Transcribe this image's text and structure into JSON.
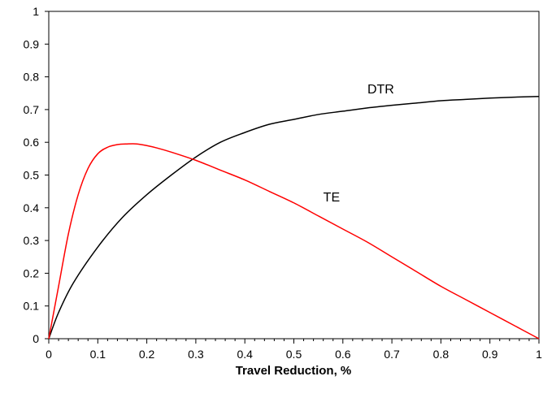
{
  "chart_data": {
    "type": "line",
    "title": "",
    "xlabel": "Travel Reduction, %",
    "ylabel": "",
    "xlim": [
      0,
      1
    ],
    "ylim": [
      0,
      1
    ],
    "x_ticks": [
      "0",
      "0.1",
      "0.2",
      "0.3",
      "0.4",
      "0.5",
      "0.6",
      "0.7",
      "0.8",
      "0.9",
      "1"
    ],
    "y_ticks": [
      "0",
      "0.1",
      "0.2",
      "0.3",
      "0.4",
      "0.5",
      "0.6",
      "0.7",
      "0.8",
      "0.9",
      "1"
    ],
    "grid": false,
    "legend": "none",
    "series": [
      {
        "name": "DTR",
        "color": "#000000",
        "x": [
          0,
          0.02,
          0.05,
          0.1,
          0.15,
          0.2,
          0.25,
          0.3,
          0.35,
          0.4,
          0.45,
          0.5,
          0.55,
          0.6,
          0.65,
          0.7,
          0.75,
          0.8,
          0.85,
          0.9,
          0.95,
          1.0
        ],
        "y": [
          0,
          0.08,
          0.17,
          0.28,
          0.37,
          0.44,
          0.5,
          0.555,
          0.6,
          0.63,
          0.655,
          0.67,
          0.685,
          0.695,
          0.705,
          0.713,
          0.72,
          0.727,
          0.731,
          0.735,
          0.738,
          0.74
        ]
      },
      {
        "name": "TE",
        "color": "#ff0000",
        "x": [
          0,
          0.02,
          0.04,
          0.06,
          0.08,
          0.1,
          0.12,
          0.14,
          0.16,
          0.18,
          0.2,
          0.22,
          0.25,
          0.3,
          0.35,
          0.4,
          0.45,
          0.5,
          0.55,
          0.6,
          0.65,
          0.7,
          0.75,
          0.8,
          0.85,
          0.9,
          0.95,
          1.0
        ],
        "y": [
          0,
          0.16,
          0.32,
          0.44,
          0.52,
          0.565,
          0.585,
          0.593,
          0.595,
          0.595,
          0.59,
          0.583,
          0.57,
          0.545,
          0.515,
          0.485,
          0.45,
          0.415,
          0.375,
          0.335,
          0.295,
          0.25,
          0.205,
          0.16,
          0.12,
          0.08,
          0.04,
          0.0
        ]
      }
    ],
    "annotations": [
      {
        "text": "DTR",
        "x": 0.65,
        "y": 0.74
      },
      {
        "text": "TE",
        "x": 0.56,
        "y": 0.41
      }
    ]
  }
}
